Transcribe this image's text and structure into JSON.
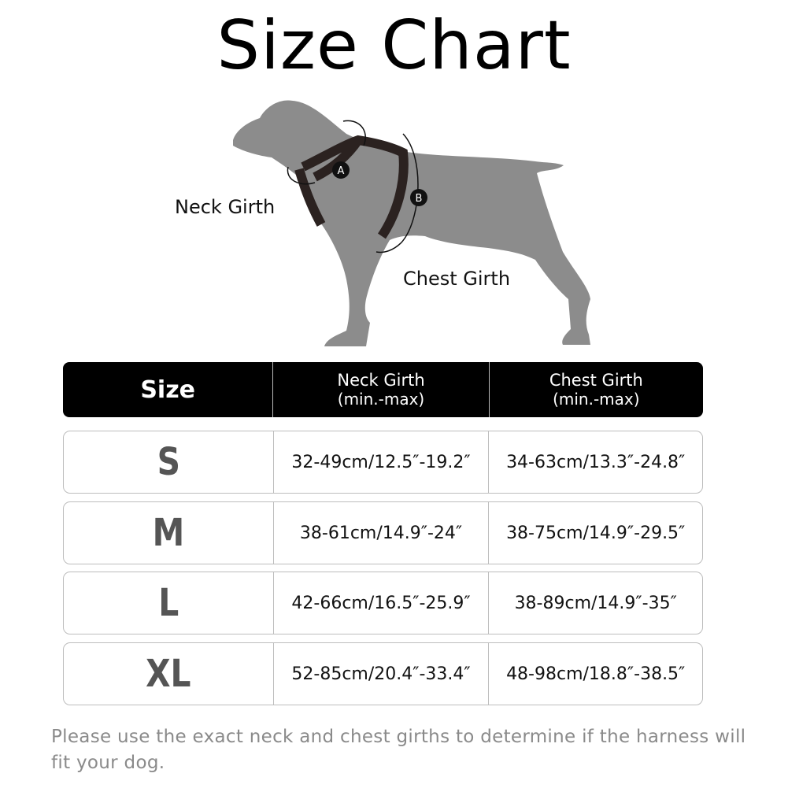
{
  "title": "Size Chart",
  "diagram": {
    "neck_label": "Neck Girth",
    "chest_label": "Chest Girth",
    "marker_a": "A",
    "marker_b": "B",
    "dog_color": "#8c8c8c",
    "harness_color": "#2b2220"
  },
  "table": {
    "headers": {
      "size": "Size",
      "neck": "Neck Girth",
      "neck_sub": "(min.-max)",
      "chest": "Chest Girth",
      "chest_sub": "(min.-max)"
    },
    "rows": [
      {
        "size": "S",
        "neck": "32-49cm/12.5″-19.2″",
        "chest": "34-63cm/13.3″-24.8″"
      },
      {
        "size": "M",
        "neck": "38-61cm/14.9″-24″",
        "chest": "38-75cm/14.9″-29.5″"
      },
      {
        "size": "L",
        "neck": "42-66cm/16.5″-25.9″",
        "chest": "38-89cm/14.9″-35″"
      },
      {
        "size": "XL",
        "neck": "52-85cm/20.4″-33.4″",
        "chest": "48-98cm/18.8″-38.5″"
      }
    ]
  },
  "note": "Please use the exact neck and chest girths to determine if the harness will fit your dog."
}
